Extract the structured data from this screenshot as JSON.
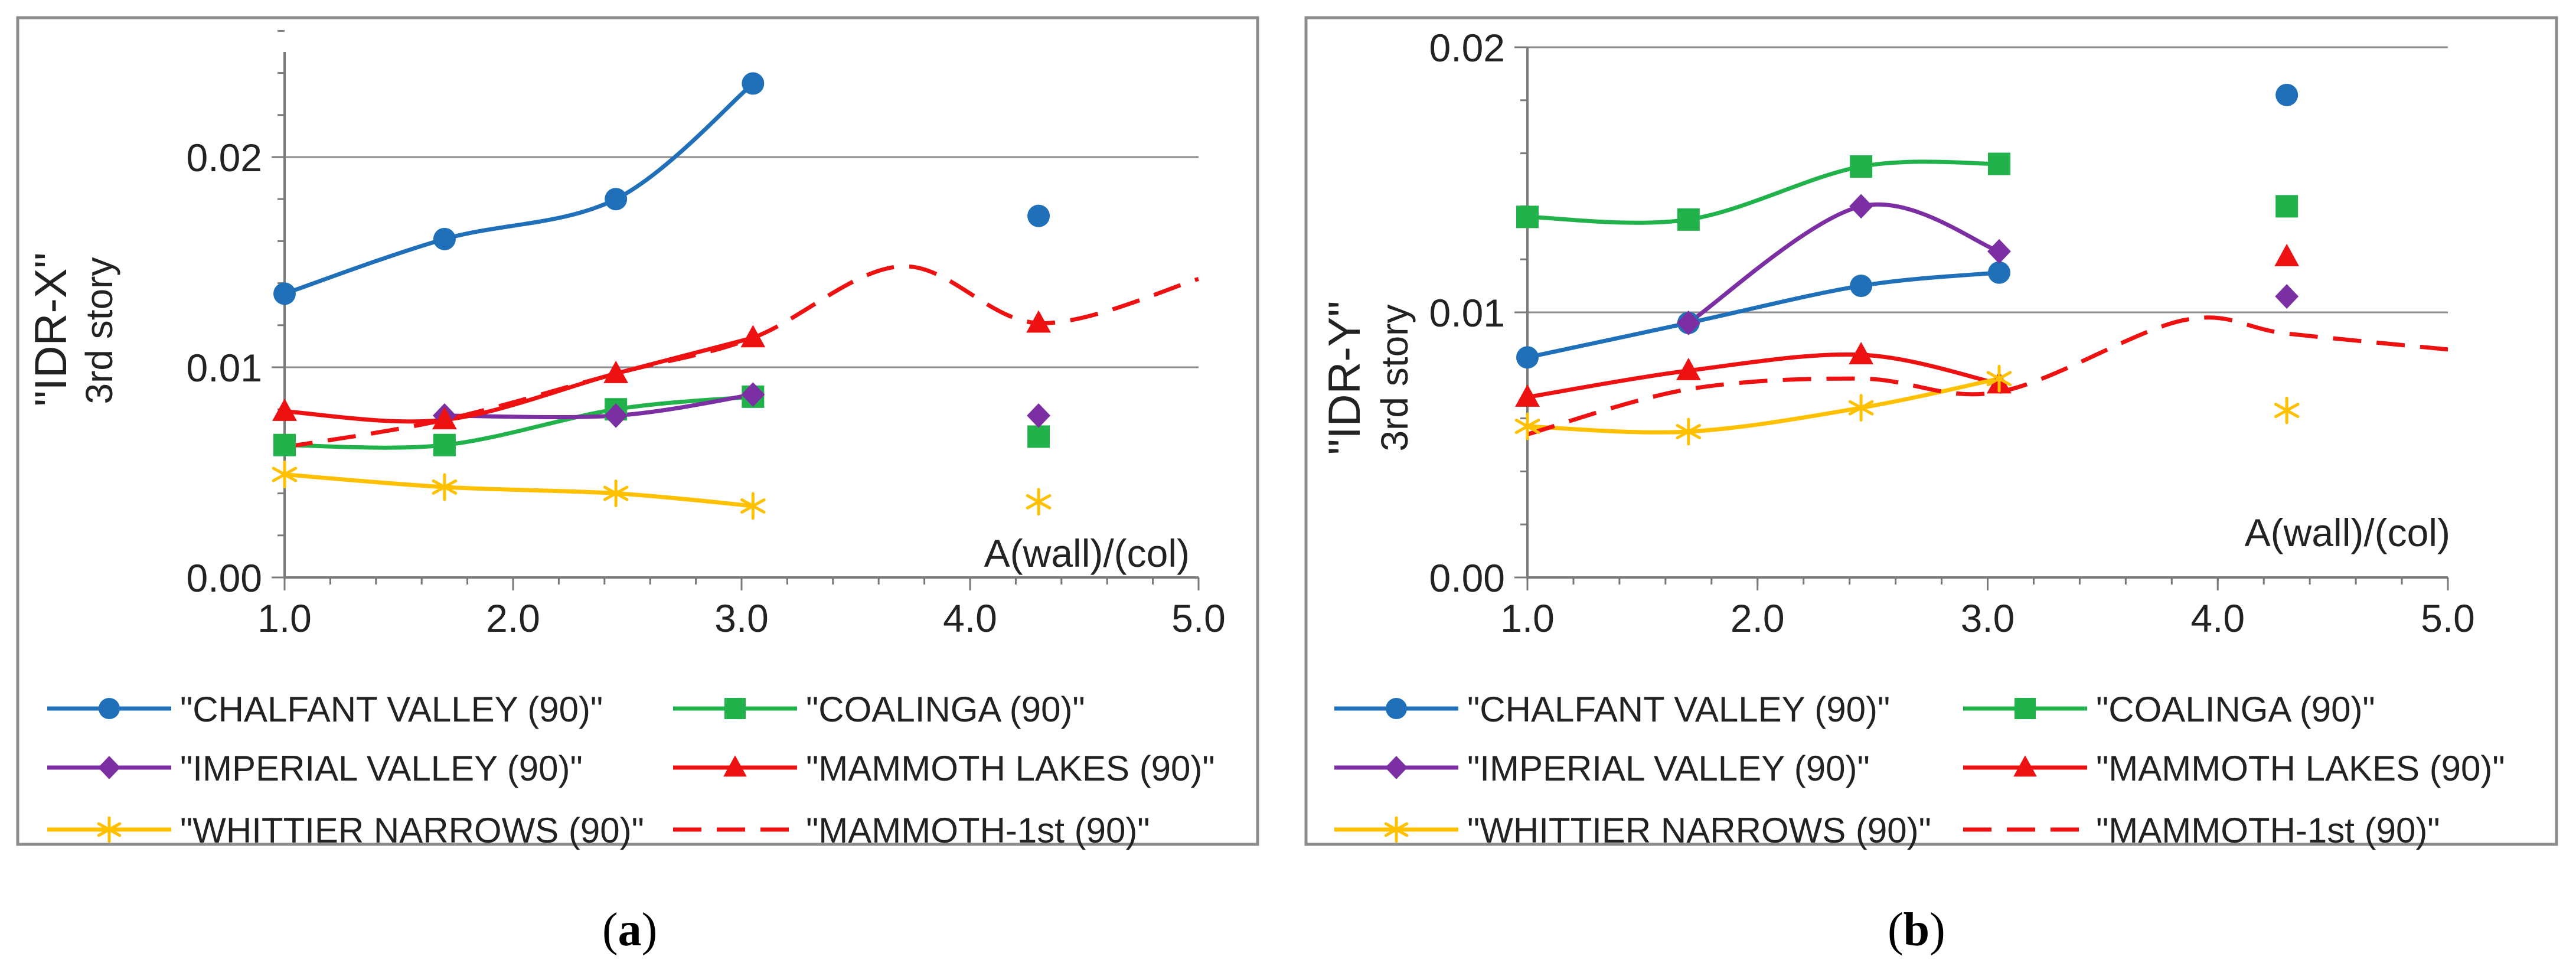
{
  "chart_data": [
    {
      "type": "line",
      "panel_label": "a",
      "ylabel_lines": [
        "\"IDR-X\"",
        "3rd story"
      ],
      "xlabel": "A(wall)/(col)",
      "xlim": [
        1.0,
        5.0
      ],
      "ylim": [
        0,
        0.025
      ],
      "x_ticks": [
        1.0,
        2.0,
        3.0,
        4.0,
        5.0
      ],
      "x_tick_labels": [
        "1.0",
        "2.0",
        "3.0",
        "4.0",
        "5.0"
      ],
      "y_ticks": [
        0,
        0.01,
        0.02
      ],
      "y_tick_labels": [
        "0.00",
        "0.01",
        "0.02"
      ],
      "y_minor_step": 0.002,
      "grid": "horizontal",
      "series": [
        {
          "name": "\"CHALFANT VALLEY (90)\"",
          "color": "#1F6FB9",
          "marker": "circle",
          "dash": false,
          "x": [
            1.0,
            1.7,
            2.45,
            3.05
          ],
          "y": [
            0.0135,
            0.0161,
            0.018,
            0.0235
          ],
          "extra_x": [
            4.3
          ],
          "extra_y": [
            0.0172
          ]
        },
        {
          "name": "\"COALINGA (90)\"",
          "color": "#22B24C",
          "marker": "square",
          "dash": false,
          "x": [
            1.0,
            1.7,
            2.45,
            3.05
          ],
          "y": [
            0.0063,
            0.0063,
            0.008,
            0.0086
          ],
          "extra_x": [
            4.3
          ],
          "extra_y": [
            0.0067
          ]
        },
        {
          "name": "\"IMPERIAL VALLEY (90)\"",
          "color": "#7B2FA3",
          "marker": "diamond",
          "dash": false,
          "x": [
            1.7,
            2.45,
            3.05
          ],
          "y": [
            0.0077,
            0.0077,
            0.0087
          ],
          "extra_x": [
            4.3
          ],
          "extra_y": [
            0.0077
          ]
        },
        {
          "name": "\"MAMMOTH LAKES (90)\"",
          "color": "#EE1111",
          "marker": "triangle",
          "dash": false,
          "x": [
            1.0,
            1.7,
            2.45,
            3.05
          ],
          "y": [
            0.0079,
            0.0075,
            0.0097,
            0.0114
          ],
          "extra_x": [
            4.3
          ],
          "extra_y": [
            0.0121
          ]
        },
        {
          "name": "\"WHITTIER NARROWS (90)\"",
          "color": "#FFC000",
          "marker": "asterisk",
          "dash": false,
          "x": [
            1.0,
            1.7,
            2.45,
            3.05
          ],
          "y": [
            0.0049,
            0.0043,
            0.004,
            0.0034
          ],
          "extra_x": [
            4.3
          ],
          "extra_y": [
            0.0036
          ]
        },
        {
          "name": "\"MAMMOTH-1st (90)\"",
          "color": "#EE1111",
          "marker": "none",
          "dash": true,
          "x": [
            1.0,
            1.7,
            2.45,
            3.05,
            3.7,
            4.3,
            5.0
          ],
          "y": [
            0.0062,
            0.0075,
            0.0097,
            0.0114,
            0.0148,
            0.0121,
            0.0142
          ],
          "extra_x": [],
          "extra_y": []
        }
      ]
    },
    {
      "type": "line",
      "panel_label": "b",
      "ylabel_lines": [
        "\"IDR-Y\"",
        "3rd story"
      ],
      "xlabel": "A(wall)/(col)",
      "xlim": [
        1.0,
        5.0
      ],
      "ylim": [
        0,
        0.02
      ],
      "x_ticks": [
        1.0,
        2.0,
        3.0,
        4.0,
        5.0
      ],
      "x_tick_labels": [
        "1.0",
        "2.0",
        "3.0",
        "4.0",
        "5.0"
      ],
      "y_ticks": [
        0,
        0.01,
        0.02
      ],
      "y_tick_labels": [
        "0.00",
        "0.01",
        "0.02"
      ],
      "y_minor_step": 0.002,
      "grid": "horizontal",
      "series": [
        {
          "name": "\"CHALFANT VALLEY (90)\"",
          "color": "#1F6FB9",
          "marker": "circle",
          "dash": false,
          "x": [
            1.0,
            1.7,
            2.45,
            3.05
          ],
          "y": [
            0.0083,
            0.0096,
            0.011,
            0.0115
          ],
          "extra_x": [
            4.3
          ],
          "extra_y": [
            0.0182
          ]
        },
        {
          "name": "\"COALINGA (90)\"",
          "color": "#22B24C",
          "marker": "square",
          "dash": false,
          "x": [
            1.0,
            1.7,
            2.45,
            3.05
          ],
          "y": [
            0.0136,
            0.0135,
            0.0155,
            0.0156
          ],
          "extra_x": [
            4.3
          ],
          "extra_y": [
            0.014
          ]
        },
        {
          "name": "\"IMPERIAL VALLEY (90)\"",
          "color": "#7B2FA3",
          "marker": "diamond",
          "dash": false,
          "x": [
            1.7,
            2.45,
            3.05
          ],
          "y": [
            0.0096,
            0.014,
            0.0123
          ],
          "extra_x": [
            4.3
          ],
          "extra_y": [
            0.0106
          ]
        },
        {
          "name": "\"MAMMOTH LAKES (90)\"",
          "color": "#EE1111",
          "marker": "triangle",
          "dash": false,
          "x": [
            1.0,
            1.7,
            2.45,
            3.05
          ],
          "y": [
            0.0068,
            0.0078,
            0.0084,
            0.0073
          ],
          "extra_x": [
            4.3
          ],
          "extra_y": [
            0.0121
          ]
        },
        {
          "name": "\"WHITTIER NARROWS (90)\"",
          "color": "#FFC000",
          "marker": "asterisk",
          "dash": false,
          "x": [
            1.0,
            1.7,
            2.45,
            3.05
          ],
          "y": [
            0.0057,
            0.0055,
            0.0064,
            0.0075
          ],
          "extra_x": [
            4.3
          ],
          "extra_y": [
            0.0063
          ]
        },
        {
          "name": "\"MAMMOTH-1st (90)\"",
          "color": "#EE1111",
          "marker": "none",
          "dash": true,
          "x": [
            1.0,
            1.7,
            2.45,
            3.05,
            3.85,
            4.3,
            5.0
          ],
          "y": [
            0.0054,
            0.0071,
            0.0075,
            0.007,
            0.0097,
            0.0092,
            0.0086
          ],
          "extra_x": [],
          "extra_y": []
        }
      ]
    }
  ]
}
